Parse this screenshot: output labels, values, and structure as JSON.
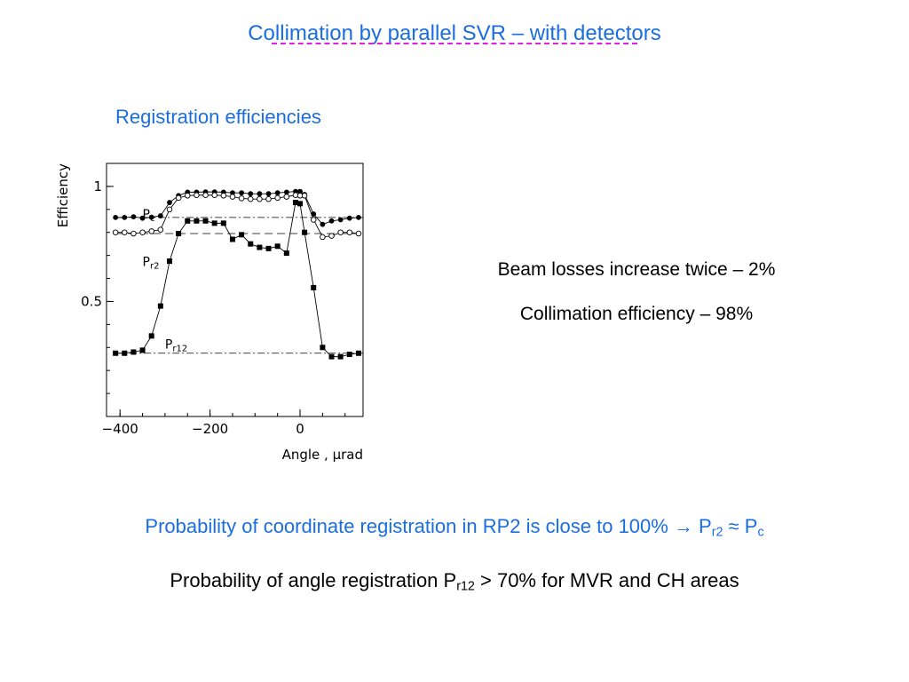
{
  "title": "Collimation by parallel SVR – with detectors",
  "subtitle": "Registration efficiencies",
  "notes": [
    "Beam losses increase twice – 2%",
    "Collimation efficiency – 98%"
  ],
  "bottom": {
    "line1": {
      "text": "Probability of coordinate registration in RP2 is close to 100% → P",
      "sub1": "r2",
      "mid": " ≈ P",
      "sub2": "c"
    },
    "line2": {
      "text": "Probability of angle registration P",
      "sub": "r12",
      "rest": " > 70% for MVR and CH areas"
    }
  },
  "colors": {
    "title": "#1a6ee0",
    "underline": "#e020e0",
    "text": "#000000"
  },
  "chart_data": {
    "type": "scatter",
    "xlabel": "Angle , μrad",
    "ylabel": "Efficiency",
    "xlim": [
      -430,
      140
    ],
    "ylim": [
      0.0,
      1.1
    ],
    "xticks": [
      -400,
      -200,
      0
    ],
    "xtick_labels": [
      "−400",
      "−200",
      "0"
    ],
    "yticks": [
      0.5,
      1
    ],
    "ytick_labels": [
      "0.5",
      "1"
    ],
    "series": [
      {
        "name": "P",
        "sub": "c",
        "marker": "filled-circle",
        "reference": 0.865,
        "label_at": [
          -350,
          0.86
        ],
        "x": [
          -410,
          -390,
          -370,
          -350,
          -330,
          -310,
          -290,
          -270,
          -250,
          -230,
          -210,
          -190,
          -170,
          -150,
          -130,
          -110,
          -90,
          -70,
          -50,
          -30,
          -10,
          0,
          10,
          30,
          50,
          70,
          90,
          110,
          130
        ],
        "y": [
          0.865,
          0.865,
          0.868,
          0.862,
          0.866,
          0.872,
          0.93,
          0.96,
          0.975,
          0.975,
          0.976,
          0.976,
          0.975,
          0.972,
          0.972,
          0.968,
          0.968,
          0.968,
          0.972,
          0.975,
          0.978,
          0.978,
          0.965,
          0.88,
          0.835,
          0.85,
          0.855,
          0.862,
          0.865
        ]
      },
      {
        "name": "P",
        "sub": "r2",
        "marker": "open-circle",
        "reference": 0.795,
        "label_at": [
          -350,
          0.655
        ],
        "x": [
          -410,
          -390,
          -370,
          -350,
          -330,
          -310,
          -290,
          -270,
          -250,
          -230,
          -210,
          -190,
          -170,
          -150,
          -130,
          -110,
          -90,
          -70,
          -50,
          -30,
          -10,
          0,
          10,
          30,
          50,
          70,
          90,
          110,
          130
        ],
        "y": [
          0.8,
          0.8,
          0.795,
          0.8,
          0.805,
          0.812,
          0.9,
          0.95,
          0.96,
          0.962,
          0.962,
          0.962,
          0.96,
          0.955,
          0.948,
          0.945,
          0.945,
          0.945,
          0.95,
          0.955,
          0.962,
          0.96,
          0.96,
          0.855,
          0.78,
          0.785,
          0.8,
          0.8,
          0.795
        ]
      },
      {
        "name": "P",
        "sub": "r12",
        "marker": "filled-square",
        "reference": 0.275,
        "label_at": [
          -300,
          0.295
        ],
        "x": [
          -410,
          -390,
          -370,
          -350,
          -330,
          -310,
          -290,
          -270,
          -250,
          -230,
          -210,
          -190,
          -170,
          -150,
          -130,
          -110,
          -90,
          -70,
          -50,
          -30,
          -10,
          0,
          10,
          30,
          50,
          70,
          90,
          110,
          130
        ],
        "y": [
          0.275,
          0.275,
          0.28,
          0.288,
          0.35,
          0.48,
          0.675,
          0.795,
          0.85,
          0.85,
          0.85,
          0.84,
          0.84,
          0.77,
          0.79,
          0.75,
          0.735,
          0.73,
          0.74,
          0.71,
          0.93,
          0.925,
          0.8,
          0.56,
          0.3,
          0.26,
          0.26,
          0.27,
          0.275
        ]
      }
    ]
  }
}
